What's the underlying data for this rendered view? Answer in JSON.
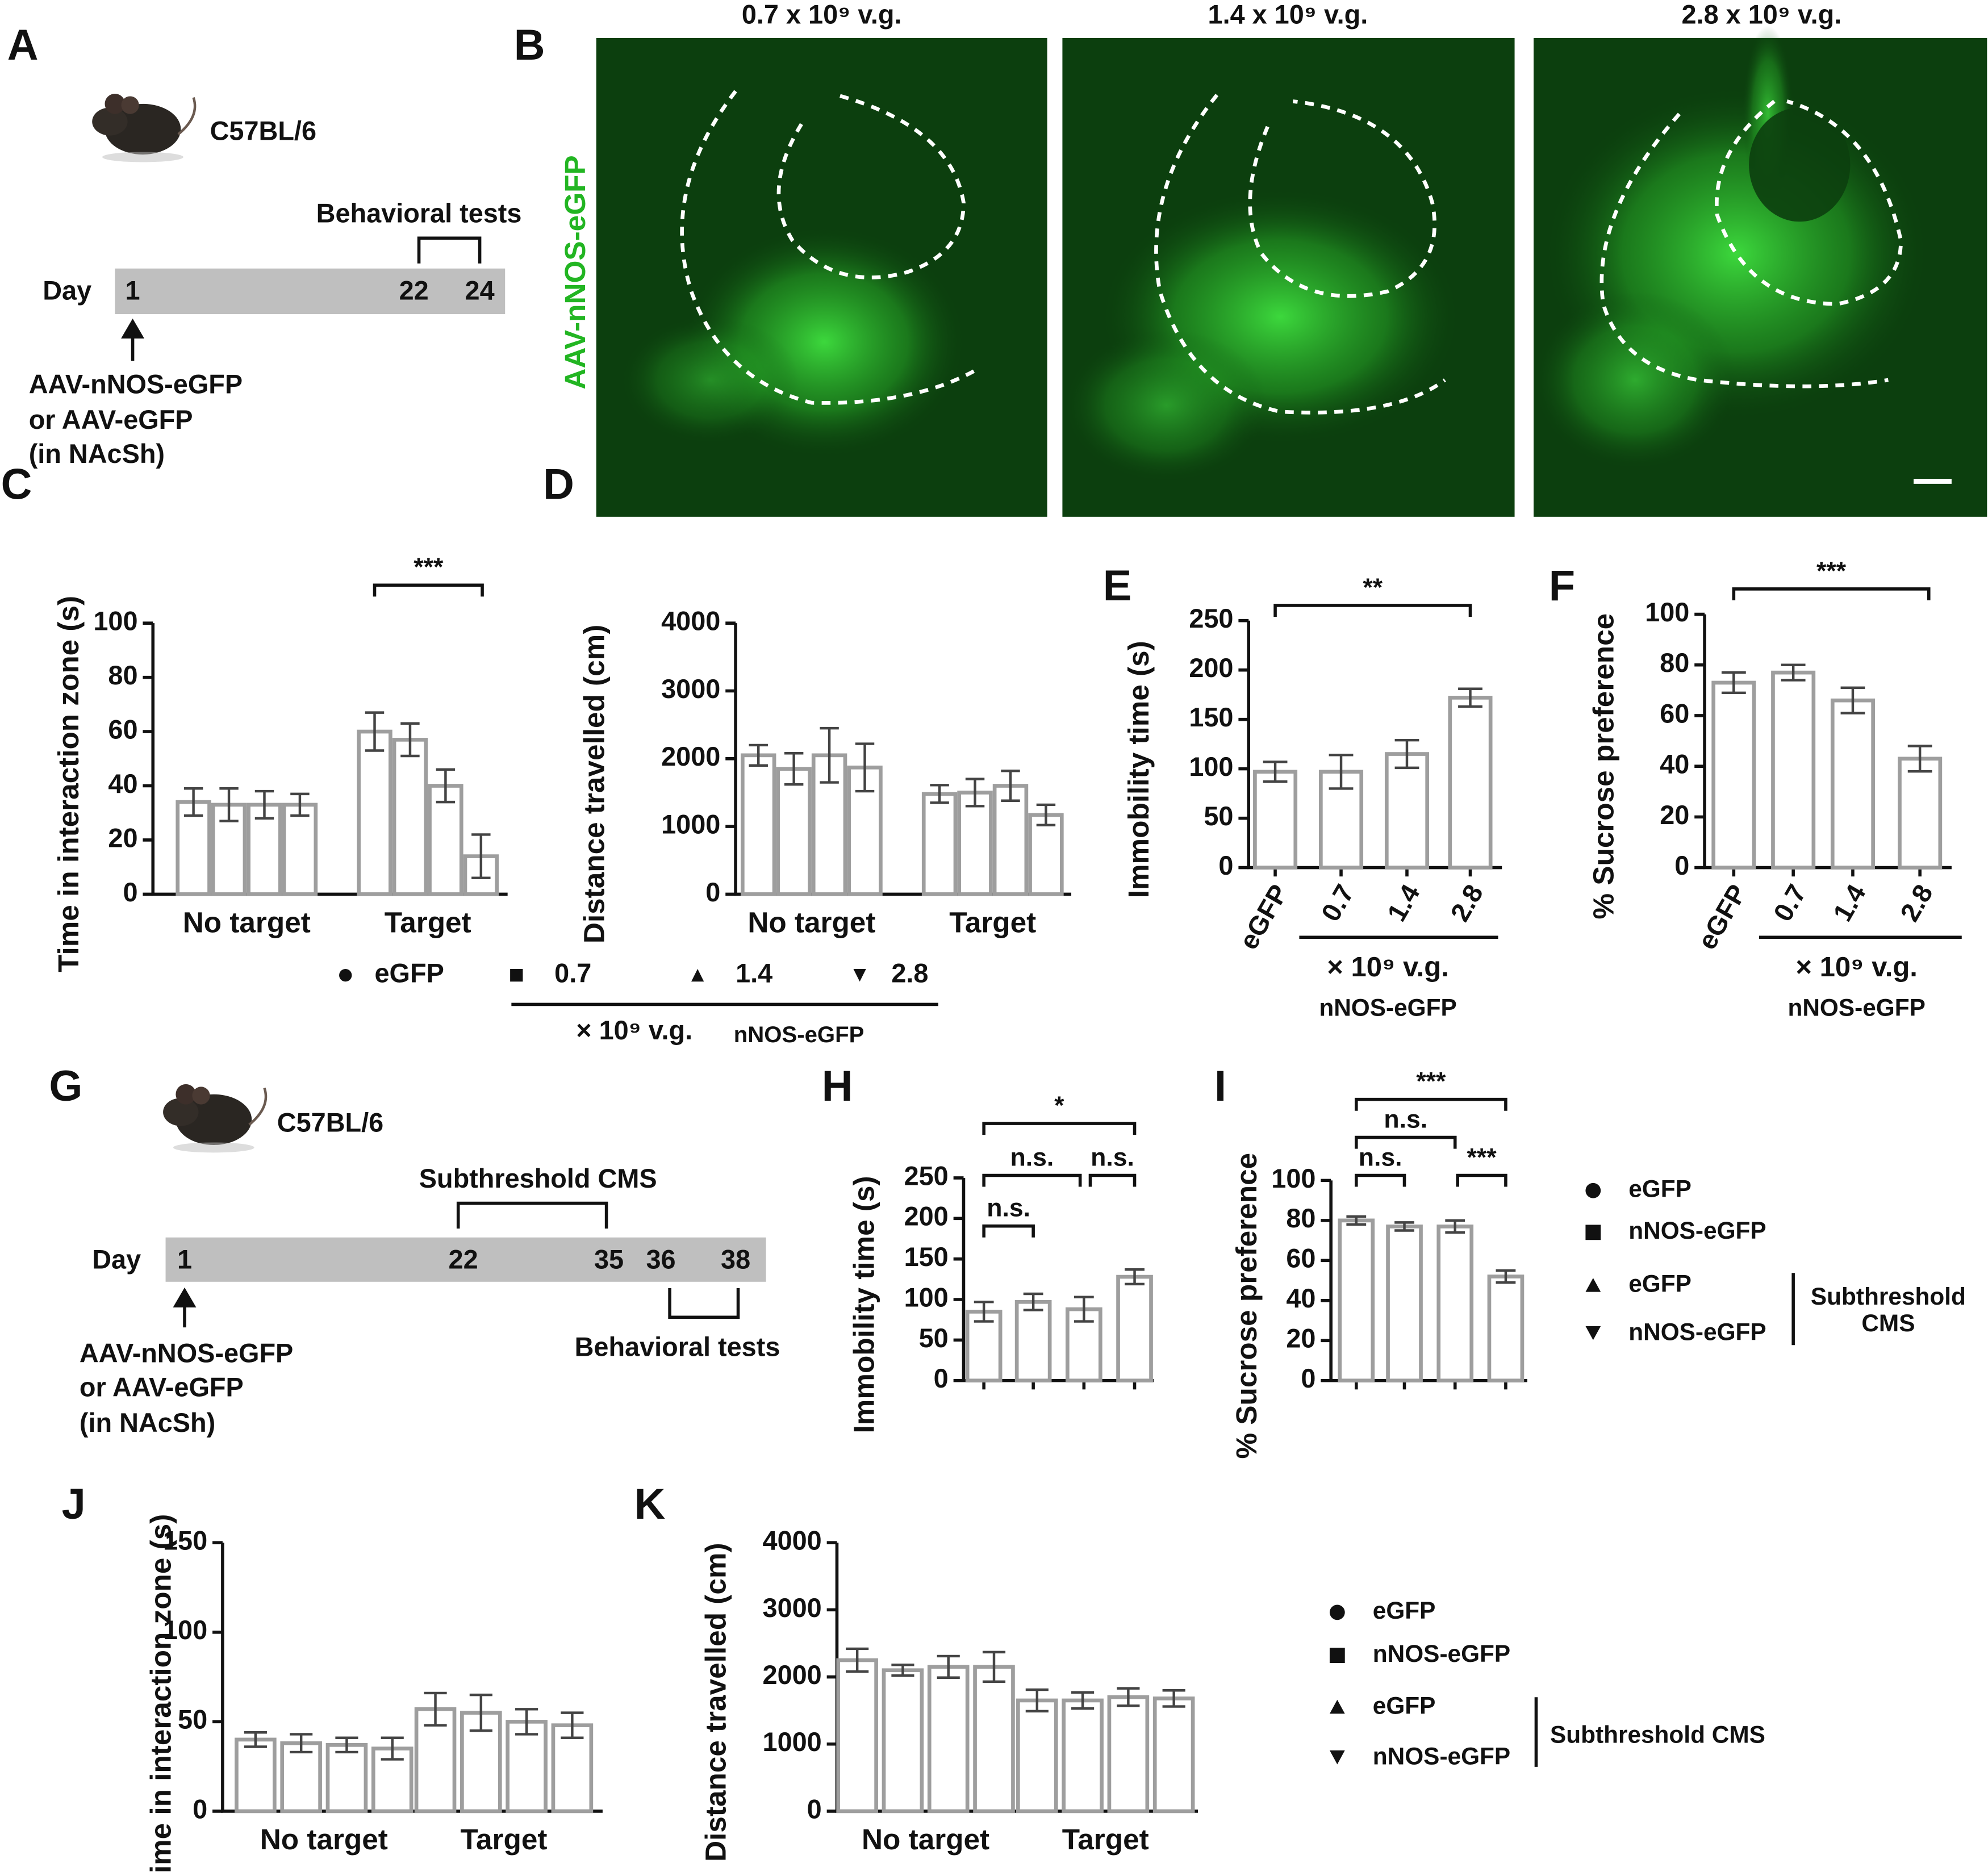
{
  "panel_labels": [
    "A",
    "B",
    "C",
    "D",
    "E",
    "F",
    "G",
    "H",
    "I",
    "J",
    "K"
  ],
  "timeline_A": {
    "strain": "C57BL/6",
    "window_label": "Behavioral tests",
    "day_label": "Day",
    "days": [
      1,
      22,
      24
    ],
    "injection": [
      "AAV-nNOS-eGFP",
      "or AAV-eGFP",
      "(in NAcSh)"
    ]
  },
  "images_B": {
    "titles": [
      "0.7 x 10⁹ v.g.",
      "1.4 x 10⁹ v.g.",
      "2.8 x 10⁹ v.g."
    ],
    "stain": "AAV-nNOS-eGFP"
  },
  "legend_CD": {
    "unit": "× 10⁹ v.g.",
    "construct": "nNOS-eGFP"
  },
  "timeline_G": {
    "strain": "C57BL/6",
    "window_labels": [
      "Subthreshold CMS",
      "Behavioral tests"
    ],
    "day_label": "Day",
    "days": [
      1,
      22,
      35,
      36,
      38
    ],
    "injection": [
      "AAV-nNOS-eGFP",
      "or AAV-eGFP",
      "(in NAcSh)"
    ]
  },
  "legend_HI": {
    "items": [
      "eGFP",
      "nNOS-eGFP",
      "eGFP",
      "nNOS-eGFP"
    ],
    "group": [
      "Subthreshold",
      "CMS"
    ]
  },
  "legend_JK": {
    "group": "Subthreshold CMS"
  },
  "chart_data": [
    {
      "type": "bar",
      "ylabel": "Time in interaction zone (s)",
      "categories": [
        "No target",
        "Target"
      ],
      "series": [
        {
          "name": "eGFP",
          "marker": "circle",
          "values": [
            34,
            60
          ],
          "errors": [
            5,
            7
          ]
        },
        {
          "name": "0.7",
          "marker": "square",
          "values": [
            33,
            57
          ],
          "errors": [
            6,
            6
          ]
        },
        {
          "name": "1.4",
          "marker": "triangle",
          "values": [
            33,
            40
          ],
          "errors": [
            5,
            6
          ]
        },
        {
          "name": "2.8",
          "marker": "triangle-down",
          "values": [
            33,
            14
          ],
          "errors": [
            4,
            8
          ]
        }
      ],
      "ylim": [
        0,
        100
      ],
      "yticks": [
        0,
        20,
        40,
        60,
        80,
        100
      ],
      "annotations": [
        "***"
      ]
    },
    {
      "type": "bar",
      "ylabel": "Distance travelled (cm)",
      "categories": [
        "No target",
        "Target"
      ],
      "series": [
        {
          "name": "eGFP",
          "marker": "circle",
          "values": [
            2050,
            1480
          ],
          "errors": [
            150,
            130
          ]
        },
        {
          "name": "0.7",
          "marker": "square",
          "values": [
            1850,
            1500
          ],
          "errors": [
            230,
            200
          ]
        },
        {
          "name": "1.4",
          "marker": "triangle",
          "values": [
            2050,
            1600
          ],
          "errors": [
            400,
            220
          ]
        },
        {
          "name": "2.8",
          "marker": "triangle-down",
          "values": [
            1870,
            1170
          ],
          "errors": [
            350,
            150
          ]
        }
      ],
      "ylim": [
        0,
        4000
      ],
      "yticks": [
        0,
        1000,
        2000,
        3000,
        4000
      ],
      "annotations": []
    },
    {
      "type": "bar",
      "ylabel": "Immobility time (s)",
      "categories": [
        "eGFP",
        "0.7",
        "1.4",
        "2.8"
      ],
      "markers": [
        "circle",
        "square",
        "triangle",
        "triangle-down"
      ],
      "values": [
        97,
        97,
        115,
        172
      ],
      "errors": [
        10,
        17,
        14,
        9
      ],
      "ylim": [
        0,
        250
      ],
      "yticks": [
        0,
        50,
        100,
        150,
        200,
        250
      ],
      "xlabel": [
        "× 10⁹ v.g.",
        "nNOS-eGFP"
      ],
      "annotations": [
        "**"
      ]
    },
    {
      "type": "bar",
      "ylabel": "% Sucrose preference",
      "categories": [
        "eGFP",
        "0.7",
        "1.4",
        "2.8"
      ],
      "markers": [
        "circle",
        "square",
        "triangle",
        "triangle-down"
      ],
      "values": [
        73,
        77,
        66,
        43
      ],
      "errors": [
        4,
        3,
        5,
        5
      ],
      "ylim": [
        0,
        100
      ],
      "yticks": [
        0,
        20,
        40,
        60,
        80,
        100
      ],
      "xlabel": [
        "× 10⁹ v.g.",
        "nNOS-eGFP"
      ],
      "annotations": [
        "***"
      ]
    },
    {
      "type": "bar",
      "ylabel": "Immobility time (s)",
      "categories": [
        null,
        null,
        null,
        null
      ],
      "markers": [
        "circle",
        "square",
        "triangle",
        "triangle-down"
      ],
      "values": [
        85,
        97,
        88,
        128
      ],
      "errors": [
        12,
        10,
        15,
        9
      ],
      "ylim": [
        0,
        250
      ],
      "yticks": [
        0,
        50,
        100,
        150,
        200,
        250
      ],
      "annotations": [
        "n.s.",
        "n.s.",
        "n.s.",
        "*"
      ]
    },
    {
      "type": "bar",
      "ylabel": "% Sucrose preference",
      "categories": [
        null,
        null,
        null,
        null
      ],
      "markers": [
        "circle",
        "square",
        "triangle",
        "triangle-down"
      ],
      "values": [
        80,
        77,
        77,
        52
      ],
      "errors": [
        2,
        2,
        3,
        3
      ],
      "ylim": [
        0,
        100
      ],
      "yticks": [
        0,
        20,
        40,
        60,
        80,
        100
      ],
      "annotations": [
        "n.s.",
        "n.s.",
        "***",
        "***"
      ]
    },
    {
      "type": "bar",
      "ylabel": "Time in interaction zone (s)",
      "categories": [
        "No target",
        "Target"
      ],
      "series": [
        {
          "name": "eGFP",
          "marker": "circle",
          "values": [
            40,
            57
          ],
          "errors": [
            4,
            9
          ]
        },
        {
          "name": "nNOS-eGFP",
          "marker": "square",
          "values": [
            38,
            55
          ],
          "errors": [
            5,
            10
          ]
        },
        {
          "name": "eGFP",
          "marker": "triangle",
          "values": [
            37,
            50
          ],
          "errors": [
            4,
            7
          ]
        },
        {
          "name": "nNOS-eGFP",
          "marker": "triangle-down",
          "values": [
            35,
            48
          ],
          "errors": [
            6,
            7
          ]
        }
      ],
      "ylim": [
        0,
        150
      ],
      "yticks": [
        0,
        50,
        100,
        150
      ],
      "annotations": []
    },
    {
      "type": "bar",
      "ylabel": "Distance travelled (cm)",
      "categories": [
        "No target",
        "Target"
      ],
      "series": [
        {
          "name": "eGFP",
          "marker": "circle",
          "values": [
            2250,
            1650
          ],
          "errors": [
            170,
            160
          ]
        },
        {
          "name": "nNOS-eGFP",
          "marker": "square",
          "values": [
            2100,
            1650
          ],
          "errors": [
            80,
            120
          ]
        },
        {
          "name": "eGFP",
          "marker": "triangle",
          "values": [
            2150,
            1700
          ],
          "errors": [
            160,
            130
          ]
        },
        {
          "name": "nNOS-eGFP",
          "marker": "triangle-down",
          "values": [
            2150,
            1680
          ],
          "errors": [
            220,
            120
          ]
        }
      ],
      "ylim": [
        0,
        4000
      ],
      "yticks": [
        0,
        1000,
        2000,
        3000,
        4000
      ],
      "annotations": []
    }
  ]
}
